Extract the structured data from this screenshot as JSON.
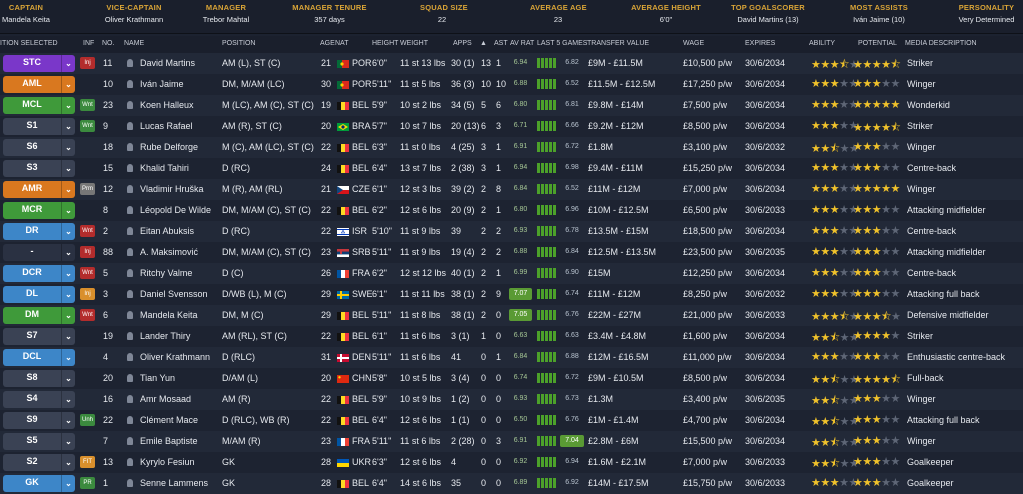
{
  "header": [
    {
      "label": "CAPTAIN",
      "value": "Mandela Keita"
    },
    {
      "label": "VICE-CAPTAIN",
      "value": "Oliver Krathmann"
    },
    {
      "label": "MANAGER",
      "value": "Trebor Mahtal"
    },
    {
      "label": "MANAGER TENURE",
      "value": "357 days"
    },
    {
      "label": "SQUAD SIZE",
      "value": "22"
    },
    {
      "label": "AVERAGE AGE",
      "value": "23"
    },
    {
      "label": "AVERAGE HEIGHT",
      "value": "6'0\""
    },
    {
      "label": "TOP GOALSCORER",
      "value": "David Martins (13)"
    },
    {
      "label": "MOST ASSISTS",
      "value": "Iván Jaime (10)"
    },
    {
      "label": "PERSONALITY",
      "value": "Very Determined"
    }
  ],
  "columns": {
    "position_selected": "ITION SELECTED",
    "inf": "INF",
    "no": "NO.",
    "name": "NAME",
    "position": "POSITION",
    "age": "AGE",
    "nat": "NAT",
    "height": "HEIGHT",
    "weight": "WEIGHT",
    "apps": "APPS",
    "gls": "▲",
    "ast": "AST",
    "av_rat": "AV RAT",
    "last5": "LAST 5 GAMES",
    "transfer_value": "TRANSFER VALUE",
    "wage": "WAGE",
    "expires": "EXPIRES",
    "ability": "ABILITY",
    "potential": "POTENTIAL",
    "media": "MEDIA DESCRIPTION"
  },
  "colors": {
    "accent": "#d9a437",
    "attack": "#7a37c9",
    "wing": "#d9781f",
    "mid": "#3f9a3a",
    "def": "#3d86c8",
    "sub": "#3a4254",
    "reserve": "#2a3142"
  },
  "players": [
    {
      "sel": "STC",
      "role": "attack",
      "inf": "Inj",
      "infc": "#b32c2c",
      "no": "11",
      "name": "David Martins",
      "pos": "AM (L), ST (C)",
      "age": "21",
      "nat": "POR",
      "h": "6'0\"",
      "w": "11 st 13 lbs",
      "apps": "30 (1)",
      "gls": "13",
      "ast": "1",
      "avr": "6.94",
      "l5": "6.82",
      "tv": "£9M - £11.5M",
      "wage": "£10,500 p/w",
      "exp": "30/6/2034",
      "ab": 3.5,
      "po": 4.5,
      "media": "Striker"
    },
    {
      "sel": "AML",
      "role": "wing",
      "inf": "",
      "infc": "",
      "no": "10",
      "name": "Iván Jaime",
      "pos": "DM, M/AM (LC)",
      "age": "30",
      "nat": "POR",
      "h": "5'11\"",
      "w": "11 st 5 lbs",
      "apps": "36 (3)",
      "gls": "10",
      "ast": "10",
      "avr": "6.88",
      "l5": "6.52",
      "tv": "£11.5M - £12.5M",
      "wage": "£17,250 p/w",
      "exp": "30/6/2034",
      "ab": 3,
      "po": 3,
      "media": "Winger"
    },
    {
      "sel": "MCL",
      "role": "mid",
      "inf": "Wnt",
      "infc": "#3b8a3e",
      "no": "23",
      "name": "Koen Halleux",
      "pos": "M (LC), AM (C), ST (C)",
      "age": "19",
      "nat": "BEL",
      "h": "5'9\"",
      "w": "10 st 2 lbs",
      "apps": "34 (5)",
      "gls": "5",
      "ast": "6",
      "avr": "6.80",
      "l5": "6.81",
      "tv": "£9.8M - £14M",
      "wage": "£7,500 p/w",
      "exp": "30/6/2034",
      "ab": 3,
      "po": 5,
      "media": "Wonderkid"
    },
    {
      "sel": "S1",
      "role": "sub",
      "inf": "Wnt",
      "infc": "#3b8a3e",
      "no": "9",
      "name": "Lucas Rafael",
      "pos": "AM (R), ST (C)",
      "age": "20",
      "nat": "BRA",
      "h": "5'7\"",
      "w": "10 st 7 lbs",
      "apps": "20 (13)",
      "gls": "6",
      "ast": "3",
      "avr": "6.71",
      "l5": "6.66",
      "tv": "£9.2M - £12M",
      "wage": "£8,500 p/w",
      "exp": "30/6/2034",
      "ab": 3,
      "po": 4.5,
      "media": "Striker"
    },
    {
      "sel": "S6",
      "role": "sub",
      "inf": "",
      "infc": "",
      "no": "18",
      "name": "Rube Delforge",
      "pos": "M (C), AM (LC), ST (C)",
      "age": "22",
      "nat": "BEL",
      "h": "6'3\"",
      "w": "11 st 0 lbs",
      "apps": "4 (25)",
      "gls": "3",
      "ast": "1",
      "avr": "6.91",
      "l5": "6.72",
      "tv": "£1.8M",
      "wage": "£3,100 p/w",
      "exp": "30/6/2032",
      "ab": 2.5,
      "po": 3,
      "media": "Winger"
    },
    {
      "sel": "S3",
      "role": "sub",
      "inf": "",
      "infc": "",
      "no": "15",
      "name": "Khalid Tahiri",
      "pos": "D (RC)",
      "age": "24",
      "nat": "BEL",
      "h": "6'4\"",
      "w": "13 st 7 lbs",
      "apps": "2 (38)",
      "gls": "3",
      "ast": "1",
      "avr": "6.94",
      "l5": "6.98",
      "tv": "£9.4M - £11M",
      "wage": "£15,250 p/w",
      "exp": "30/6/2034",
      "ab": 3,
      "po": 3,
      "media": "Centre-back"
    },
    {
      "sel": "AMR",
      "role": "wing",
      "inf": "Prm",
      "infc": "#777777",
      "no": "12",
      "name": "Vladimir Hruška",
      "pos": "M (R), AM (RL)",
      "age": "21",
      "nat": "CZE",
      "h": "6'1\"",
      "w": "12 st 3 lbs",
      "apps": "39 (2)",
      "gls": "2",
      "ast": "8",
      "avr": "6.84",
      "l5": "6.52",
      "tv": "£11M - £12M",
      "wage": "£7,000 p/w",
      "exp": "30/6/2034",
      "ab": 3,
      "po": 5,
      "media": "Winger"
    },
    {
      "sel": "MCR",
      "role": "mid",
      "inf": "",
      "infc": "",
      "no": "8",
      "name": "Léopold De Wilde",
      "pos": "DM, M/AM (C), ST (C)",
      "age": "22",
      "nat": "BEL",
      "h": "6'2\"",
      "w": "12 st 6 lbs",
      "apps": "20 (9)",
      "gls": "2",
      "ast": "1",
      "avr": "6.80",
      "l5": "6.96",
      "tv": "£10M - £12.5M",
      "wage": "£6,500 p/w",
      "exp": "30/6/2033",
      "ab": 3,
      "po": 3,
      "media": "Attacking midfielder"
    },
    {
      "sel": "DR",
      "role": "def",
      "inf": "Wnt",
      "infc": "#b32c2c",
      "no": "2",
      "name": "Eitan Abuksis",
      "pos": "D (RC)",
      "age": "22",
      "nat": "ISR",
      "h": "5'10\"",
      "w": "11 st 9 lbs",
      "apps": "39",
      "gls": "2",
      "ast": "2",
      "avr": "6.93",
      "l5": "6.78",
      "tv": "£13.5M - £15M",
      "wage": "£18,500 p/w",
      "exp": "30/6/2034",
      "ab": 3,
      "po": 3,
      "media": "Centre-back"
    },
    {
      "sel": "-",
      "role": "reserve",
      "inf": "Inj",
      "infc": "#b32c2c",
      "no": "88",
      "name": "A. Maksimović",
      "pos": "DM, M/AM (C), ST (C)",
      "age": "23",
      "nat": "SRB",
      "h": "5'11\"",
      "w": "11 st 9 lbs",
      "apps": "19 (4)",
      "gls": "2",
      "ast": "2",
      "avr": "6.88",
      "l5": "6.84",
      "tv": "£12.5M - £13.5M",
      "wage": "£23,500 p/w",
      "exp": "30/6/2035",
      "ab": 3,
      "po": 3,
      "media": "Attacking midfielder"
    },
    {
      "sel": "DCR",
      "role": "def",
      "inf": "Wnt",
      "infc": "#b32c2c",
      "no": "5",
      "name": "Ritchy Valme",
      "pos": "D (C)",
      "age": "26",
      "nat": "FRA",
      "h": "6'2\"",
      "w": "12 st 12 lbs",
      "apps": "40 (1)",
      "gls": "2",
      "ast": "1",
      "avr": "6.99",
      "l5": "6.90",
      "tv": "£15M",
      "wage": "£12,250 p/w",
      "exp": "30/6/2034",
      "ab": 3,
      "po": 3,
      "media": "Centre-back"
    },
    {
      "sel": "DL",
      "role": "def",
      "inf": "Inj",
      "infc": "#d98f2c",
      "no": "3",
      "name": "Daniel Svensson",
      "pos": "D/WB (L), M (C)",
      "age": "29",
      "nat": "SWE",
      "h": "6'1\"",
      "w": "11 st 11 lbs",
      "apps": "38 (1)",
      "gls": "2",
      "ast": "9",
      "avr": "7.07",
      "l5": "6.74",
      "tv": "£11M - £12M",
      "wage": "£8,250 p/w",
      "exp": "30/6/2032",
      "ab": 3,
      "po": 3,
      "media": "Attacking full back"
    },
    {
      "sel": "DM",
      "role": "mid",
      "inf": "Wnt",
      "infc": "#b32c2c",
      "no": "6",
      "name": "Mandela Keita",
      "pos": "DM, M (C)",
      "age": "29",
      "nat": "BEL",
      "h": "5'11\"",
      "w": "11 st 8 lbs",
      "apps": "38 (1)",
      "gls": "2",
      "ast": "0",
      "avr": "7.05",
      "l5": "6.76",
      "tv": "£22M - £27M",
      "wage": "£21,000 p/w",
      "exp": "30/6/2033",
      "ab": 3.5,
      "po": 3.5,
      "media": "Defensive midfielder"
    },
    {
      "sel": "S7",
      "role": "sub",
      "inf": "",
      "infc": "",
      "no": "19",
      "name": "Lander Thiry",
      "pos": "AM (RL), ST (C)",
      "age": "22",
      "nat": "BEL",
      "h": "6'1\"",
      "w": "11 st 6 lbs",
      "apps": "3 (1)",
      "gls": "1",
      "ast": "0",
      "avr": "6.63",
      "l5": "6.63",
      "tv": "£3.4M - £4.8M",
      "wage": "£1,600 p/w",
      "exp": "30/6/2034",
      "ab": 2.5,
      "po": 4,
      "media": "Striker"
    },
    {
      "sel": "DCL",
      "role": "def",
      "inf": "",
      "infc": "",
      "no": "4",
      "name": "Oliver Krathmann",
      "pos": "D (RLC)",
      "age": "31",
      "nat": "DEN",
      "h": "5'11\"",
      "w": "11 st 6 lbs",
      "apps": "41",
      "gls": "0",
      "ast": "1",
      "avr": "6.84",
      "l5": "6.88",
      "tv": "£12M - £16.5M",
      "wage": "£11,000 p/w",
      "exp": "30/6/2034",
      "ab": 3,
      "po": 3,
      "media": "Enthusiastic centre-back"
    },
    {
      "sel": "S8",
      "role": "sub",
      "inf": "",
      "infc": "",
      "no": "20",
      "name": "Tian Yun",
      "pos": "D/AM (L)",
      "age": "20",
      "nat": "CHN",
      "h": "5'8\"",
      "w": "10 st 5 lbs",
      "apps": "3 (4)",
      "gls": "0",
      "ast": "0",
      "avr": "6.74",
      "l5": "6.72",
      "tv": "£9M - £10.5M",
      "wage": "£8,500 p/w",
      "exp": "30/6/2034",
      "ab": 2.5,
      "po": 4.5,
      "media": "Full-back"
    },
    {
      "sel": "S4",
      "role": "sub",
      "inf": "",
      "infc": "",
      "no": "16",
      "name": "Amr Mosaad",
      "pos": "AM (R)",
      "age": "22",
      "nat": "BEL",
      "h": "5'9\"",
      "w": "10 st 9 lbs",
      "apps": "1 (2)",
      "gls": "0",
      "ast": "0",
      "avr": "6.93",
      "l5": "6.73",
      "tv": "£1.3M",
      "wage": "£3,400 p/w",
      "exp": "30/6/2035",
      "ab": 2.5,
      "po": 3,
      "media": "Winger"
    },
    {
      "sel": "S9",
      "role": "sub",
      "inf": "Unh",
      "infc": "#3b8a3e",
      "no": "22",
      "name": "Clément Mace",
      "pos": "D (RLC), WB (R)",
      "age": "22",
      "nat": "BEL",
      "h": "6'4\"",
      "w": "12 st 6 lbs",
      "apps": "1 (1)",
      "gls": "0",
      "ast": "0",
      "avr": "6.50",
      "l5": "6.76",
      "tv": "£1M - £1.4M",
      "wage": "£4,700 p/w",
      "exp": "30/6/2034",
      "ab": 2.5,
      "po": 3,
      "media": "Attacking full back"
    },
    {
      "sel": "S5",
      "role": "sub",
      "inf": "",
      "infc": "",
      "no": "7",
      "name": "Emile Baptiste",
      "pos": "M/AM (R)",
      "age": "23",
      "nat": "FRA",
      "h": "5'11\"",
      "w": "11 st 6 lbs",
      "apps": "2 (28)",
      "gls": "0",
      "ast": "3",
      "avr": "6.91",
      "l5": "7.04",
      "tv": "£2.8M - £6M",
      "wage": "£15,500 p/w",
      "exp": "30/6/2034",
      "ab": 2.5,
      "po": 3,
      "media": "Winger"
    },
    {
      "sel": "S2",
      "role": "sub",
      "inf": "FIT",
      "infc": "#d98f2c",
      "no": "13",
      "name": "Kyrylo Fesiun",
      "pos": "GK",
      "age": "28",
      "nat": "UKR",
      "h": "6'3\"",
      "w": "12 st 6 lbs",
      "apps": "4",
      "gls": "0",
      "ast": "0",
      "avr": "6.92",
      "l5": "6.94",
      "tv": "£1.6M - £2.1M",
      "wage": "£7,000 p/w",
      "exp": "30/6/2033",
      "ab": 2.5,
      "po": 3,
      "media": "Goalkeeper"
    },
    {
      "sel": "GK",
      "role": "def",
      "inf": "PR",
      "infc": "#3b8a3e",
      "no": "1",
      "name": "Senne Lammens",
      "pos": "GK",
      "age": "28",
      "nat": "BEL",
      "h": "6'4\"",
      "w": "14 st 6 lbs",
      "apps": "35",
      "gls": "0",
      "ast": "0",
      "avr": "6.89",
      "l5": "6.92",
      "tv": "£14M - £17.5M",
      "wage": "£15,750 p/w",
      "exp": "30/6/2033",
      "ab": 3,
      "po": 3,
      "media": "Goalkeeper"
    }
  ]
}
